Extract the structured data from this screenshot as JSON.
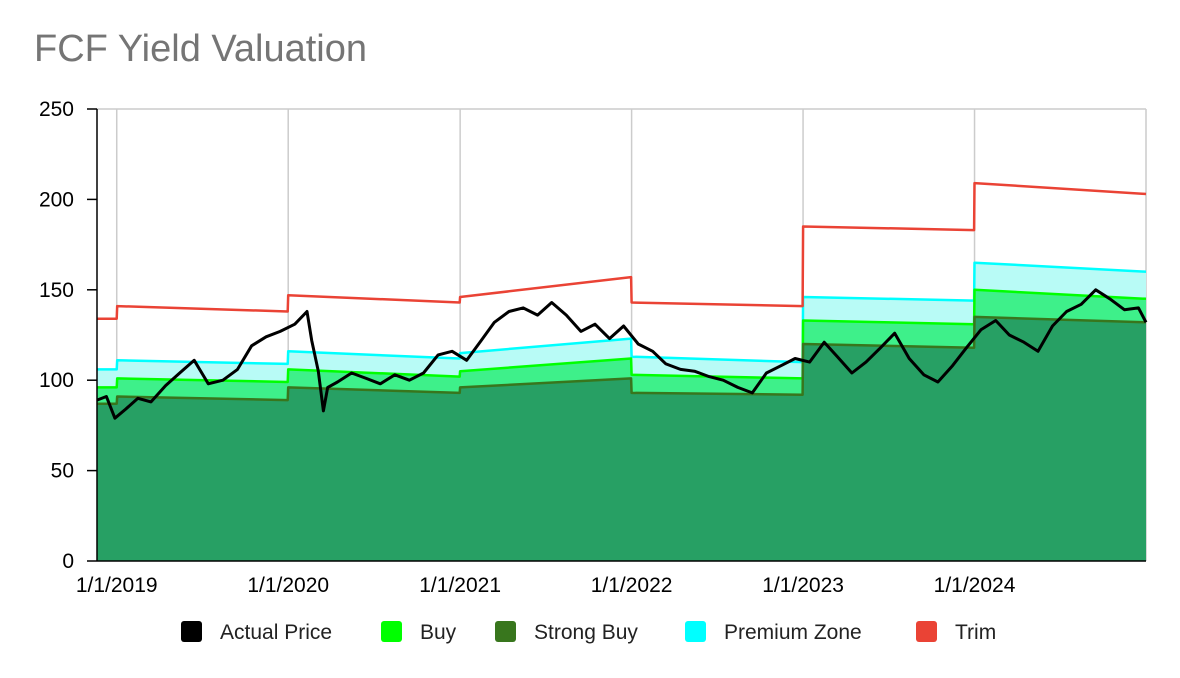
{
  "chart_data": {
    "type": "area",
    "title": "FCF Yield Valuation",
    "xlabel": "",
    "ylabel": "",
    "xlim": [
      "2018-11-20",
      "2024-12-31"
    ],
    "ylim": [
      0,
      250
    ],
    "y_ticks": [
      0,
      50,
      100,
      150,
      200,
      250
    ],
    "x_ticks": [
      "1/1/2019",
      "1/1/2020",
      "1/1/2021",
      "1/1/2022",
      "1/1/2023",
      "1/1/2024"
    ],
    "grid": "vertical",
    "legend_position": "bottom",
    "colors": {
      "Actual Price": "#000000",
      "Buy": "#00ff00",
      "Strong Buy": "#38761d",
      "Premium Zone": "#00ffff",
      "Trim": "#ea4335",
      "strong_buy_fill": "#27a064",
      "buy_fill": "#3ef08a",
      "premium_fill": "#b8fbf6"
    },
    "series": [
      {
        "name": "Trim",
        "x": [
          "2018-11-20",
          "2019-01-01",
          "2019-01-02",
          "2019-12-31",
          "2020-01-01",
          "2020-12-31",
          "2021-01-01",
          "2021-12-31",
          "2022-01-01",
          "2022-12-31",
          "2023-01-01",
          "2023-12-31",
          "2024-01-01",
          "2024-12-31"
        ],
        "values": [
          134,
          134,
          141,
          138,
          147,
          143,
          146,
          157,
          143,
          141,
          185,
          183,
          209,
          203
        ]
      },
      {
        "name": "Premium Zone",
        "x": [
          "2018-11-20",
          "2019-01-01",
          "2019-01-02",
          "2019-12-31",
          "2020-01-01",
          "2020-12-31",
          "2021-01-01",
          "2021-12-31",
          "2022-01-01",
          "2022-12-31",
          "2023-01-01",
          "2023-12-31",
          "2024-01-01",
          "2024-12-31"
        ],
        "values": [
          106,
          106,
          111,
          109,
          116,
          112,
          115,
          123,
          113,
          110,
          146,
          144,
          165,
          160
        ]
      },
      {
        "name": "Buy",
        "x": [
          "2018-11-20",
          "2019-01-01",
          "2019-01-02",
          "2019-12-31",
          "2020-01-01",
          "2020-12-31",
          "2021-01-01",
          "2021-12-31",
          "2022-01-01",
          "2022-12-31",
          "2023-01-01",
          "2023-12-31",
          "2024-01-01",
          "2024-12-31"
        ],
        "values": [
          96,
          96,
          101,
          99,
          106,
          102,
          105,
          112,
          103,
          101,
          133,
          131,
          150,
          145
        ]
      },
      {
        "name": "Strong Buy",
        "x": [
          "2018-11-20",
          "2019-01-01",
          "2019-01-02",
          "2019-12-31",
          "2020-01-01",
          "2020-12-31",
          "2021-01-01",
          "2021-12-31",
          "2022-01-01",
          "2022-12-31",
          "2023-01-01",
          "2023-12-31",
          "2024-01-01",
          "2024-12-31"
        ],
        "values": [
          87,
          87,
          91,
          89,
          96,
          93,
          96,
          101,
          93,
          92,
          120,
          118,
          135,
          132
        ]
      },
      {
        "name": "Actual Price",
        "x": [
          "2018-11-20",
          "2018-12-10",
          "2018-12-28",
          "2019-01-20",
          "2019-02-15",
          "2019-03-15",
          "2019-04-15",
          "2019-05-15",
          "2019-06-15",
          "2019-07-15",
          "2019-08-15",
          "2019-09-15",
          "2019-10-15",
          "2019-11-15",
          "2019-12-15",
          "2020-01-15",
          "2020-02-10",
          "2020-02-20",
          "2020-03-05",
          "2020-03-16",
          "2020-03-25",
          "2020-04-15",
          "2020-05-15",
          "2020-06-15",
          "2020-07-15",
          "2020-08-15",
          "2020-09-15",
          "2020-10-15",
          "2020-11-15",
          "2020-12-15",
          "2021-01-15",
          "2021-02-15",
          "2021-03-15",
          "2021-04-15",
          "2021-05-15",
          "2021-06-15",
          "2021-07-15",
          "2021-08-15",
          "2021-09-15",
          "2021-10-15",
          "2021-11-15",
          "2021-12-15",
          "2022-01-15",
          "2022-02-15",
          "2022-03-15",
          "2022-04-15",
          "2022-05-15",
          "2022-06-15",
          "2022-07-15",
          "2022-08-15",
          "2022-09-15",
          "2022-10-15",
          "2022-11-15",
          "2022-12-15",
          "2023-01-15",
          "2023-02-15",
          "2023-03-15",
          "2023-04-15",
          "2023-05-15",
          "2023-06-15",
          "2023-07-15",
          "2023-08-15",
          "2023-09-15",
          "2023-10-15",
          "2023-11-15",
          "2023-12-15",
          "2024-01-15",
          "2024-02-15",
          "2024-03-15",
          "2024-04-15",
          "2024-05-15",
          "2024-06-15",
          "2024-07-15",
          "2024-08-15",
          "2024-09-15",
          "2024-10-15",
          "2024-11-15",
          "2024-12-15",
          "2024-12-31"
        ],
        "values": [
          89,
          91,
          79,
          84,
          90,
          88,
          97,
          104,
          111,
          98,
          100,
          106,
          119,
          124,
          127,
          131,
          138,
          122,
          105,
          83,
          96,
          99,
          104,
          101,
          98,
          103,
          100,
          104,
          114,
          116,
          111,
          122,
          132,
          138,
          140,
          136,
          143,
          136,
          127,
          131,
          123,
          130,
          120,
          116,
          109,
          106,
          105,
          102,
          100,
          96,
          93,
          104,
          108,
          112,
          110,
          121,
          113,
          104,
          110,
          118,
          126,
          112,
          103,
          99,
          108,
          118,
          128,
          133,
          125,
          121,
          116,
          130,
          138,
          142,
          150,
          145,
          139,
          140,
          132
        ]
      }
    ]
  }
}
